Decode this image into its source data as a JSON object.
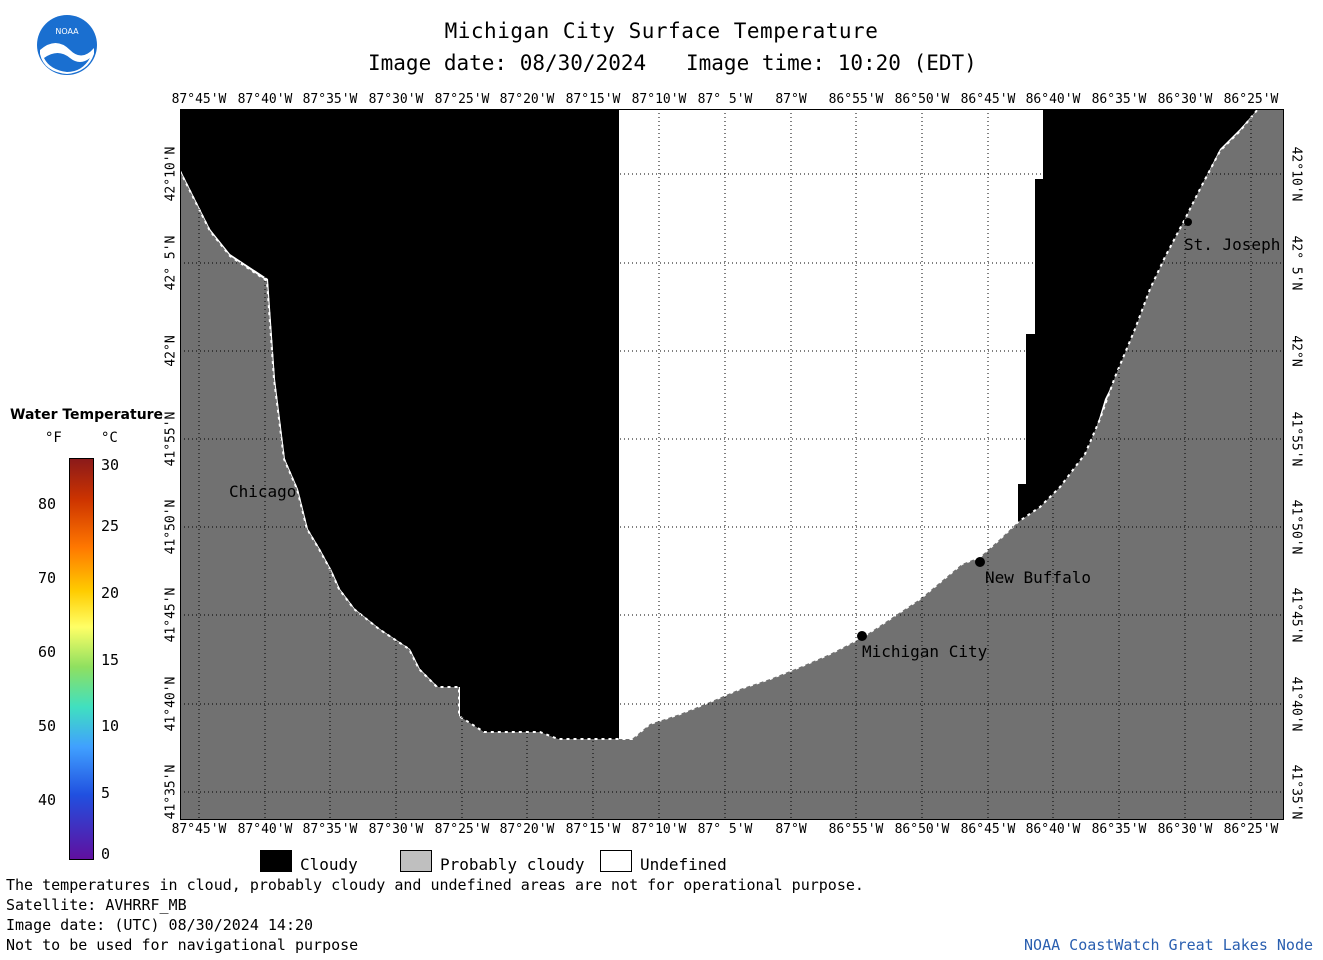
{
  "title": "Michigan City Surface Temperature",
  "date_line": "Image date: 08/30/2024",
  "time_line": "Image time: 10:20 (EDT)",
  "logo_text": "NOAA",
  "lon_ticks": [
    "87°45'W",
    "87°40'W",
    "87°35'W",
    "87°30'W",
    "87°25'W",
    "87°20'W",
    "87°15'W",
    "87°10'W",
    "87° 5'W",
    "87°W",
    "86°55'W",
    "86°50'W",
    "86°45'W",
    "86°40'W",
    "86°35'W",
    "86°30'W",
    "86°25'W"
  ],
  "lat_ticks": [
    "42°10'N",
    "42° 5'N",
    "42°N",
    "41°55'N",
    "41°50'N",
    "41°45'N",
    "41°40'N",
    "41°35'N"
  ],
  "cities": {
    "chicago": "Chicago",
    "st_joseph": "St. Joseph",
    "new_buffalo": "New Buffalo",
    "michigan_city": "Michigan City"
  },
  "colorbar": {
    "title": "Water Temperature",
    "unit_f": "°F",
    "unit_c": "°C",
    "f_ticks": [
      "80",
      "70",
      "60",
      "50",
      "40"
    ],
    "c_ticks": [
      "30",
      "25",
      "20",
      "15",
      "10",
      "5",
      "0"
    ]
  },
  "legend": {
    "cloudy": "Cloudy",
    "probably_cloudy": "Probably cloudy",
    "undefined": "Undefined"
  },
  "colors": {
    "cloud": "#000000",
    "land": "#717171",
    "undefined": "#ffffff",
    "probably_cloudy_swatch": "#bfbfbf",
    "credit": "#2a5fb0"
  },
  "footer": {
    "line1": "The temperatures in cloud, probably cloudy and undefined areas are not for operational purpose.",
    "line2": "Satellite: AVHRRF_MB",
    "line3": "Image date: (UTC) 08/30/2024  14:20",
    "line4": "Not to be used for navigational purpose",
    "credit": "NOAA CoastWatch Great Lakes Node"
  }
}
